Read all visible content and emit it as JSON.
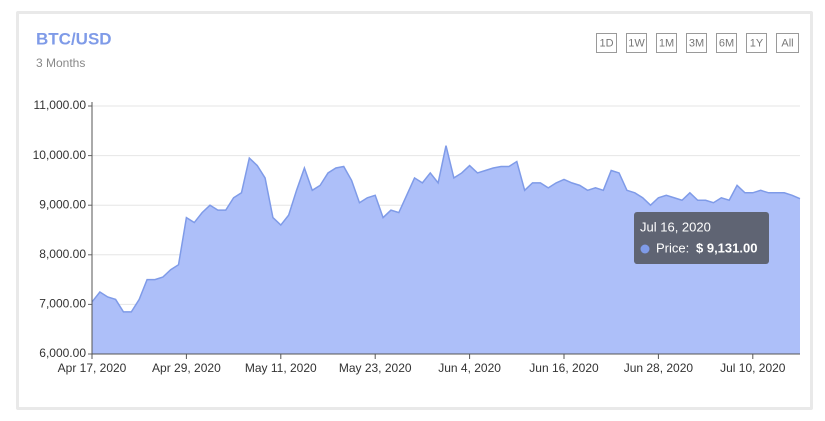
{
  "chart_data": {
    "type": "area",
    "title": "BTC/USD",
    "subtitle": "3 Months",
    "range_buttons": [
      "1D",
      "1W",
      "1M",
      "3M",
      "6M",
      "1Y",
      "All"
    ],
    "x": [
      "2020-04-17",
      "2020-04-18",
      "2020-04-19",
      "2020-04-20",
      "2020-04-21",
      "2020-04-22",
      "2020-04-23",
      "2020-04-24",
      "2020-04-25",
      "2020-04-26",
      "2020-04-27",
      "2020-04-28",
      "2020-04-29",
      "2020-04-30",
      "2020-05-01",
      "2020-05-02",
      "2020-05-03",
      "2020-05-04",
      "2020-05-05",
      "2020-05-06",
      "2020-05-07",
      "2020-05-08",
      "2020-05-09",
      "2020-05-10",
      "2020-05-11",
      "2020-05-12",
      "2020-05-13",
      "2020-05-14",
      "2020-05-15",
      "2020-05-16",
      "2020-05-17",
      "2020-05-18",
      "2020-05-19",
      "2020-05-20",
      "2020-05-21",
      "2020-05-22",
      "2020-05-23",
      "2020-05-24",
      "2020-05-25",
      "2020-05-26",
      "2020-05-27",
      "2020-05-28",
      "2020-05-29",
      "2020-05-30",
      "2020-05-31",
      "2020-06-01",
      "2020-06-02",
      "2020-06-03",
      "2020-06-04",
      "2020-06-05",
      "2020-06-06",
      "2020-06-07",
      "2020-06-08",
      "2020-06-09",
      "2020-06-10",
      "2020-06-11",
      "2020-06-12",
      "2020-06-13",
      "2020-06-14",
      "2020-06-15",
      "2020-06-16",
      "2020-06-17",
      "2020-06-18",
      "2020-06-19",
      "2020-06-20",
      "2020-06-21",
      "2020-06-22",
      "2020-06-23",
      "2020-06-24",
      "2020-06-25",
      "2020-06-26",
      "2020-06-27",
      "2020-06-28",
      "2020-06-29",
      "2020-06-30",
      "2020-07-01",
      "2020-07-02",
      "2020-07-03",
      "2020-07-04",
      "2020-07-05",
      "2020-07-06",
      "2020-07-07",
      "2020-07-08",
      "2020-07-09",
      "2020-07-10",
      "2020-07-11",
      "2020-07-12",
      "2020-07-13",
      "2020-07-14",
      "2020-07-15",
      "2020-07-16"
    ],
    "series": [
      {
        "name": "Price",
        "color": "#7f9be8",
        "fill": "#adbff9",
        "values": [
          7050,
          7250,
          7150,
          7100,
          6850,
          6850,
          7100,
          7500,
          7500,
          7550,
          7700,
          7800,
          8750,
          8650,
          8850,
          9000,
          8900,
          8900,
          9150,
          9250,
          9950,
          9800,
          9550,
          8750,
          8600,
          8800,
          9300,
          9750,
          9300,
          9400,
          9650,
          9750,
          9780,
          9500,
          9050,
          9150,
          9200,
          8750,
          8900,
          8850,
          9200,
          9550,
          9450,
          9650,
          9450,
          10200,
          9550,
          9650,
          9800,
          9650,
          9700,
          9750,
          9780,
          9780,
          9880,
          9300,
          9450,
          9450,
          9350,
          9450,
          9520,
          9450,
          9400,
          9300,
          9350,
          9300,
          9700,
          9650,
          9300,
          9250,
          9150,
          9000,
          9150,
          9200,
          9150,
          9100,
          9250,
          9100,
          9100,
          9050,
          9150,
          9100,
          9400,
          9250,
          9250,
          9300,
          9250,
          9250,
          9250,
          9200,
          9131
        ]
      }
    ],
    "xlim": [
      "2020-04-17",
      "2020-07-16"
    ],
    "xticks": [
      {
        "value": "2020-04-17",
        "label": "Apr 17, 2020"
      },
      {
        "value": "2020-04-29",
        "label": "Apr 29, 2020"
      },
      {
        "value": "2020-05-11",
        "label": "May 11, 2020"
      },
      {
        "value": "2020-05-23",
        "label": "May 23, 2020"
      },
      {
        "value": "2020-06-04",
        "label": "Jun 4, 2020"
      },
      {
        "value": "2020-06-16",
        "label": "Jun 16, 2020"
      },
      {
        "value": "2020-06-28",
        "label": "Jun 28, 2020"
      },
      {
        "value": "2020-07-10",
        "label": "Jul 10, 2020"
      }
    ],
    "ylim": [
      6000,
      11000
    ],
    "yticks": [
      {
        "value": 6000,
        "label": "6,000.00"
      },
      {
        "value": 7000,
        "label": "7,000.00"
      },
      {
        "value": 8000,
        "label": "8,000.00"
      },
      {
        "value": 9000,
        "label": "9,000.00"
      },
      {
        "value": 10000,
        "label": "10,000.00"
      },
      {
        "value": 11000,
        "label": "11,000.00"
      }
    ],
    "grid": true,
    "tooltip": {
      "title": "Jul 16, 2020",
      "series_label": "Price:",
      "value_label": "$ 9,131.00"
    }
  }
}
